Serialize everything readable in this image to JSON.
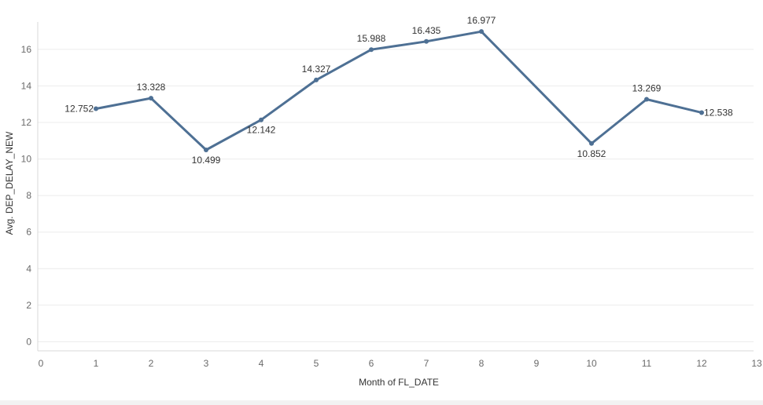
{
  "chart_data": {
    "type": "line",
    "title": "",
    "xlabel": "Month of FL_DATE",
    "ylabel": "Avg. DEP_DELAY_NEW",
    "xlim": [
      0,
      13
    ],
    "ylim": [
      -0.5,
      17.5
    ],
    "xticks": [
      0,
      1,
      2,
      3,
      4,
      5,
      6,
      7,
      8,
      9,
      10,
      11,
      12,
      13
    ],
    "yticks": [
      0,
      2,
      4,
      6,
      8,
      10,
      12,
      14,
      16
    ],
    "grid": true,
    "legend": "none",
    "series": [
      {
        "name": "Avg. DEP_DELAY_NEW",
        "color": "#4e7094",
        "x": [
          1,
          2,
          3,
          4,
          5,
          6,
          7,
          8,
          10,
          11,
          12
        ],
        "values": [
          12.752,
          13.328,
          10.499,
          12.142,
          14.327,
          15.988,
          16.435,
          16.977,
          10.852,
          13.269,
          12.538
        ],
        "labels": [
          "12.752",
          "13.328",
          "10.499",
          "12.142",
          "14.327",
          "15.988",
          "16.435",
          "16.977",
          "10.852",
          "13.269",
          "12.538"
        ],
        "label_positions": [
          "left",
          "above",
          "below",
          "below",
          "above",
          "above",
          "above",
          "above",
          "below",
          "above",
          "right"
        ]
      }
    ]
  }
}
